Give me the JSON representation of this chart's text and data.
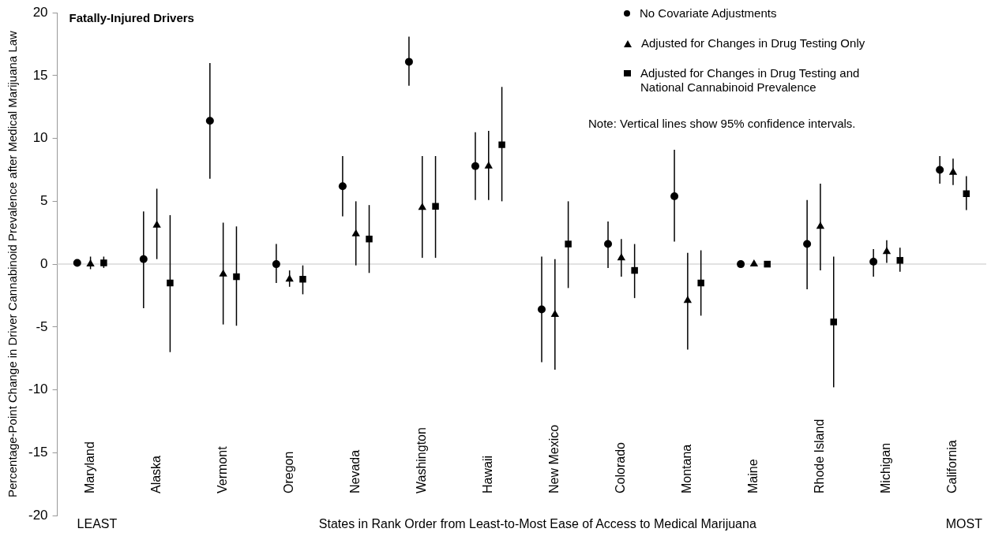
{
  "chart_data": {
    "type": "scatter",
    "title": "Fatally-Injured Drivers",
    "xlabel": "States in Rank Order from Least-to-Most Ease of Access to Medical Marijuana",
    "ylabel": "Percentage-Point Change in Driver Cannabinoid Prevalence after Medical Marijuana Law",
    "categories": [
      "Maryland",
      "Alaska",
      "Vermont",
      "Oregon",
      "Nevada",
      "Washington",
      "Hawaii",
      "New Mexico",
      "Colorado",
      "Montana",
      "Maine",
      "Rhode Island",
      "Michigan",
      "California"
    ],
    "series": [
      {
        "name": "No Covariate Adjustments",
        "color": "#000000",
        "marker": "circle",
        "values": [
          0.1,
          0.4,
          11.4,
          0,
          6.2,
          16.1,
          7.8,
          -3.6,
          1.6,
          5.4,
          0,
          1.6,
          0.2,
          7.5
        ],
        "errors": [
          null,
          [
            -3.5,
            4.2
          ],
          [
            6.8,
            16.0
          ],
          [
            -1.5,
            1.6
          ],
          [
            3.8,
            8.6
          ],
          [
            14.2,
            18.1
          ],
          [
            5.1,
            10.5
          ],
          [
            -7.8,
            0.6
          ],
          [
            -0.3,
            3.4
          ],
          [
            1.8,
            9.1
          ],
          null,
          [
            -2.0,
            5.1
          ],
          [
            -1.0,
            1.2
          ],
          [
            6.4,
            8.6
          ]
        ]
      },
      {
        "name": "Adjusted for Changes in Drug Testing Only",
        "color": "#000000",
        "marker": "triangle",
        "values": [
          0,
          3.1,
          -0.8,
          -1.2,
          2.4,
          4.5,
          7.8,
          -4.0,
          0.5,
          -2.9,
          0,
          3.0,
          1.0,
          7.3
        ],
        "errors": [
          [
            -0.4,
            0.6
          ],
          [
            0.4,
            6.0
          ],
          [
            -4.8,
            3.3
          ],
          [
            -1.8,
            -0.5
          ],
          [
            -0.1,
            5.0
          ],
          [
            0.5,
            8.6
          ],
          [
            5.1,
            10.6
          ],
          [
            -8.4,
            0.4
          ],
          [
            -1.0,
            2.0
          ],
          [
            -6.8,
            0.9
          ],
          null,
          [
            -0.5,
            6.4
          ],
          [
            0.1,
            1.9
          ],
          [
            6.3,
            8.4
          ]
        ]
      },
      {
        "name": "Adjusted for Changes in Drug Testing and National Cannabinoid Prevalence",
        "color": "#000000",
        "marker": "square",
        "values": [
          0.1,
          -1.5,
          -1.0,
          -1.2,
          2.0,
          4.6,
          9.5,
          1.6,
          -0.5,
          -1.5,
          0,
          -4.6,
          0.3,
          5.6
        ],
        "errors": [
          [
            -0.3,
            0.6
          ],
          [
            -7.0,
            3.9
          ],
          [
            -4.9,
            3.0
          ],
          [
            -2.4,
            -0.1
          ],
          [
            -0.7,
            4.7
          ],
          [
            0.5,
            8.6
          ],
          [
            5.0,
            14.1
          ],
          [
            -1.9,
            5.0
          ],
          [
            -2.7,
            1.6
          ],
          [
            -4.1,
            1.1
          ],
          null,
          [
            -9.8,
            0.6
          ],
          [
            -0.6,
            1.3
          ],
          [
            4.3,
            7.0
          ]
        ]
      }
    ],
    "annotations": [
      "LEAST",
      "MOST",
      "Note: Vertical lines show 95% confidence intervals."
    ],
    "ref_lines": [
      {
        "axis": "y",
        "value": 0,
        "color": "#d9d9d9"
      }
    ],
    "ylim": [
      -20,
      20
    ],
    "yticks": [
      -20,
      -15,
      -10,
      -5,
      0,
      5,
      10,
      15,
      20
    ],
    "grid": false,
    "legend": "top right"
  }
}
